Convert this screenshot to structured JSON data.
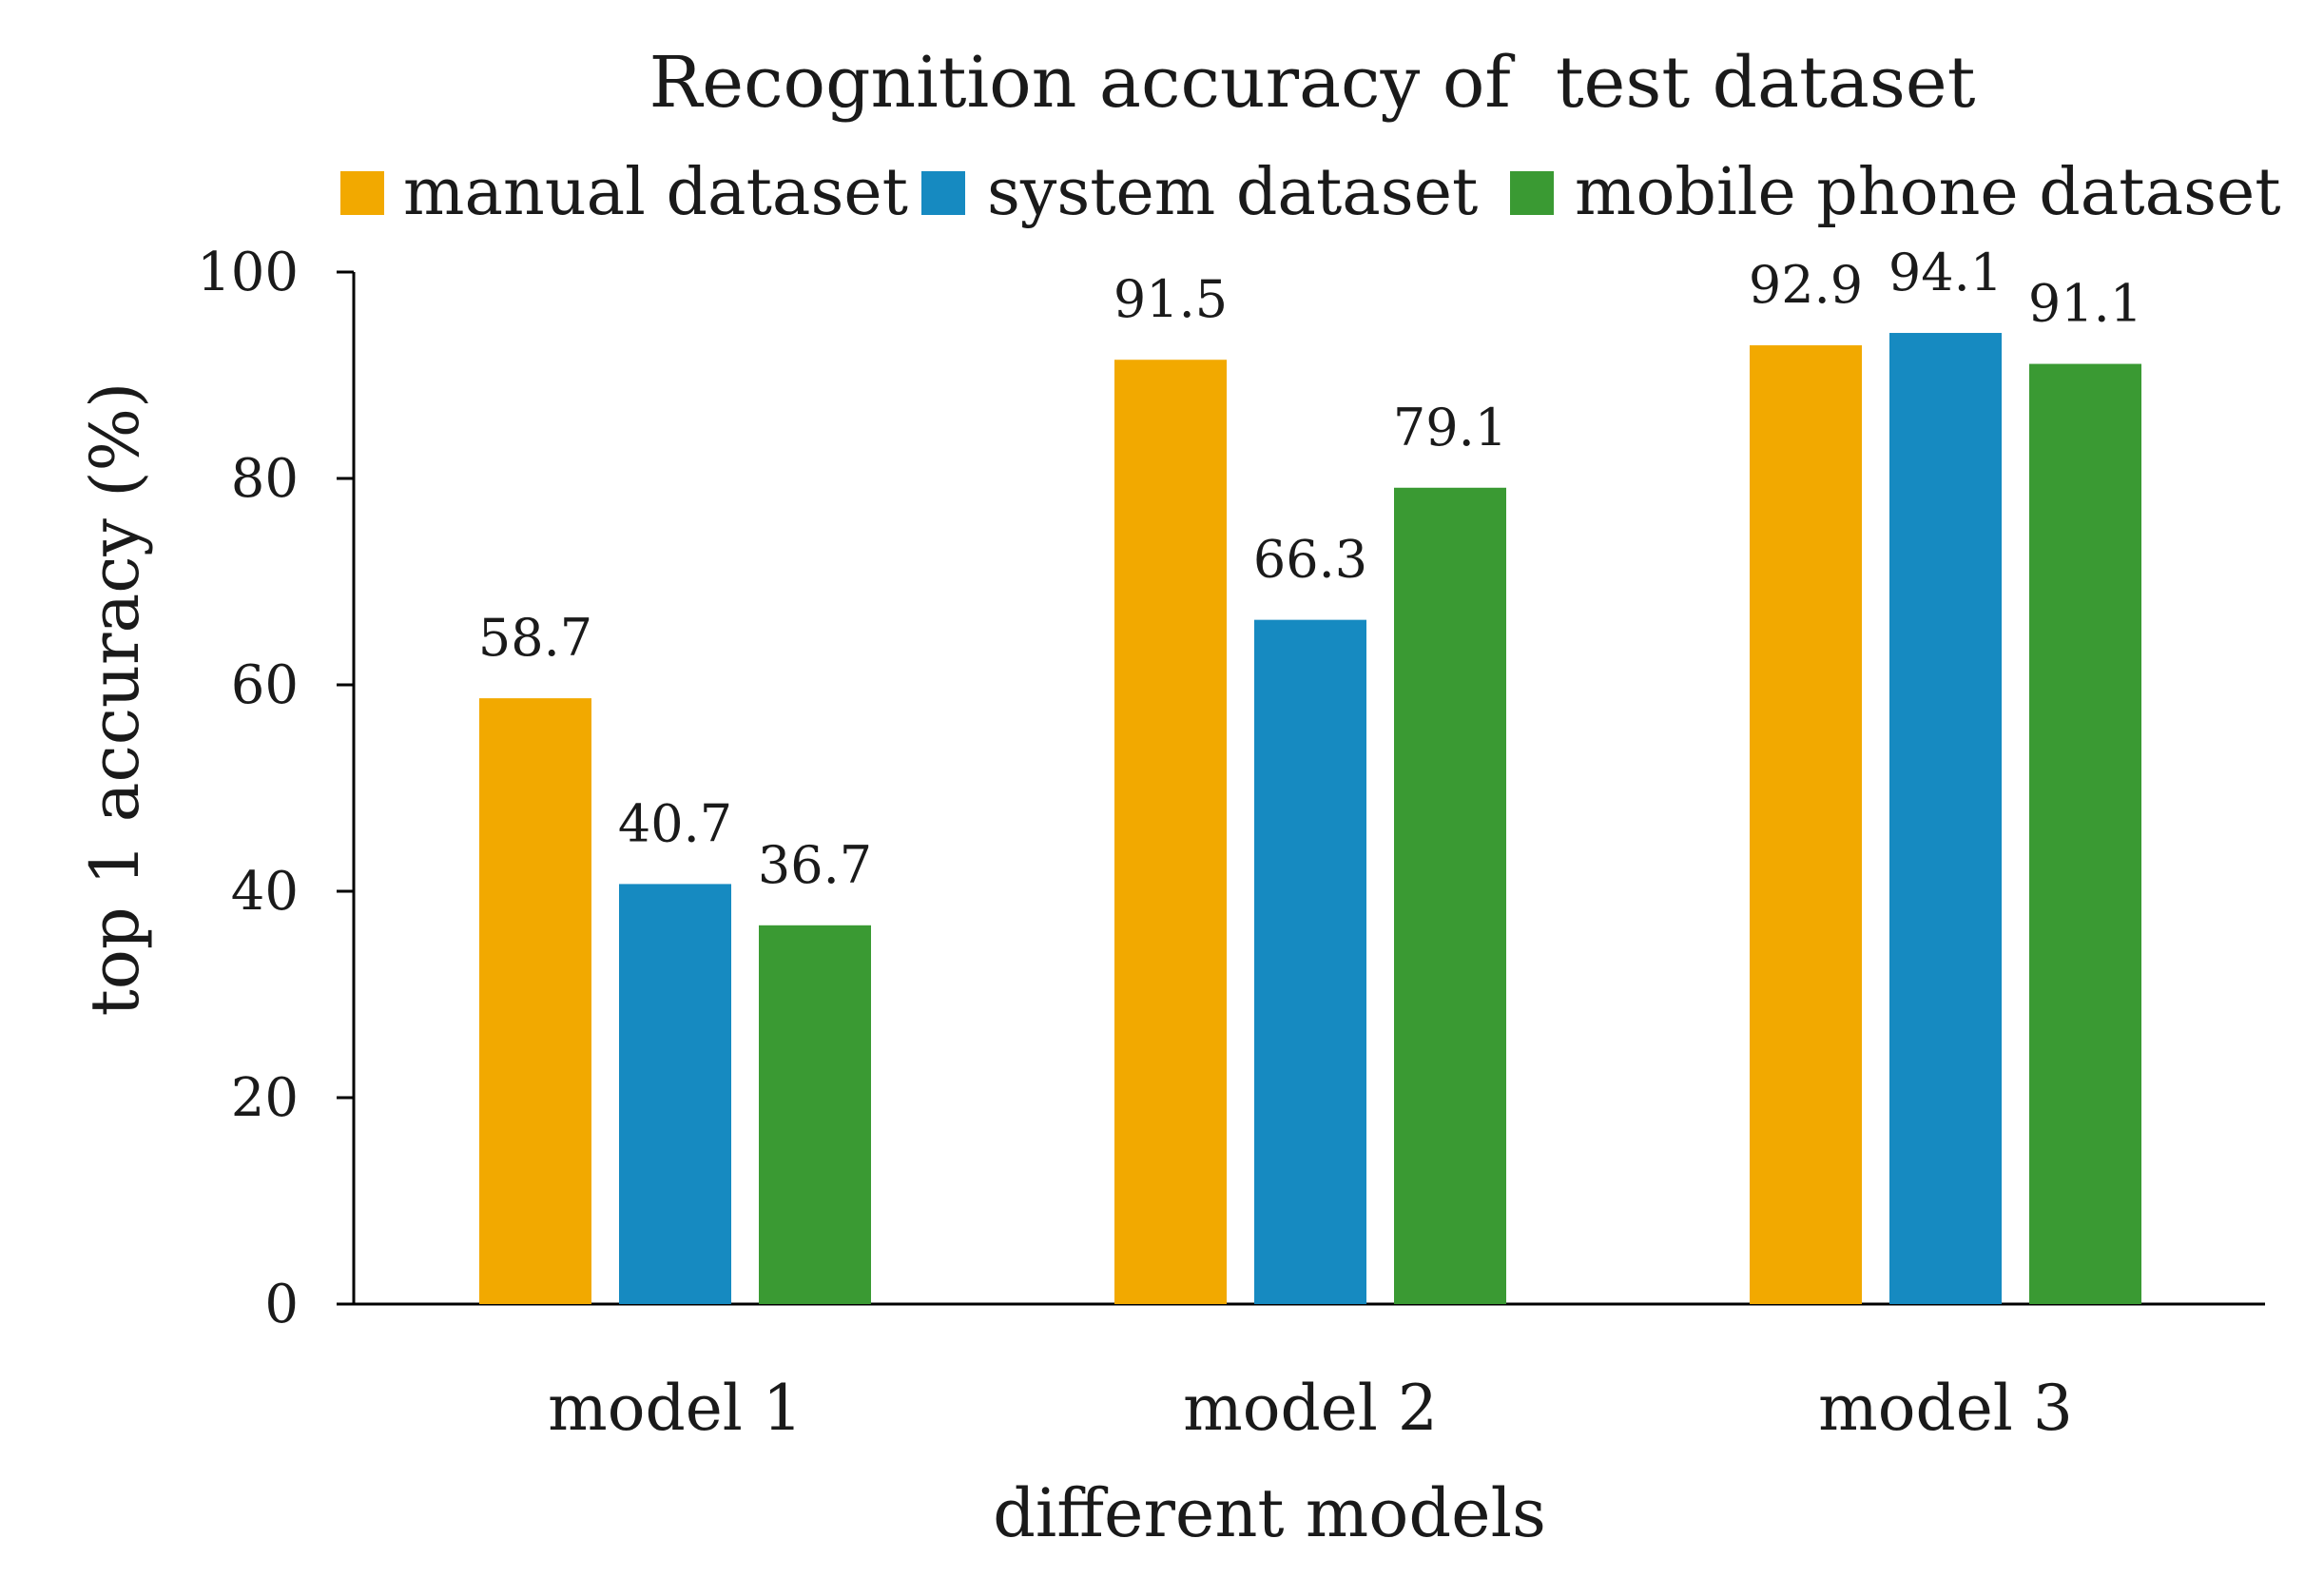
{
  "chart_data": {
    "type": "bar",
    "title": "Recognition accuracy of  test dataset",
    "xlabel": "different models",
    "ylabel": "top 1 accuracy (%)",
    "categories": [
      "model 1",
      "model 2",
      "model 3"
    ],
    "series": [
      {
        "name": "manual dataset",
        "color": "#F2A900",
        "values": [
          58.7,
          91.5,
          92.9
        ]
      },
      {
        "name": "system dataset",
        "color": "#168AC1",
        "values": [
          40.7,
          66.3,
          94.1
        ]
      },
      {
        "name": "mobile phone dataset",
        "color": "#3A9A33",
        "values": [
          36.7,
          79.1,
          91.1
        ]
      }
    ],
    "ylim": [
      0,
      100
    ],
    "yticks": [
      "0",
      "20",
      "40",
      "60",
      "80",
      "100"
    ],
    "data_labels": [
      [
        "58.7",
        "91.5",
        "92.9"
      ],
      [
        "40.7",
        "66.3",
        "94.1"
      ],
      [
        "36.7",
        "79.1",
        "91.1"
      ]
    ],
    "grid": false,
    "legend_position": "top"
  }
}
